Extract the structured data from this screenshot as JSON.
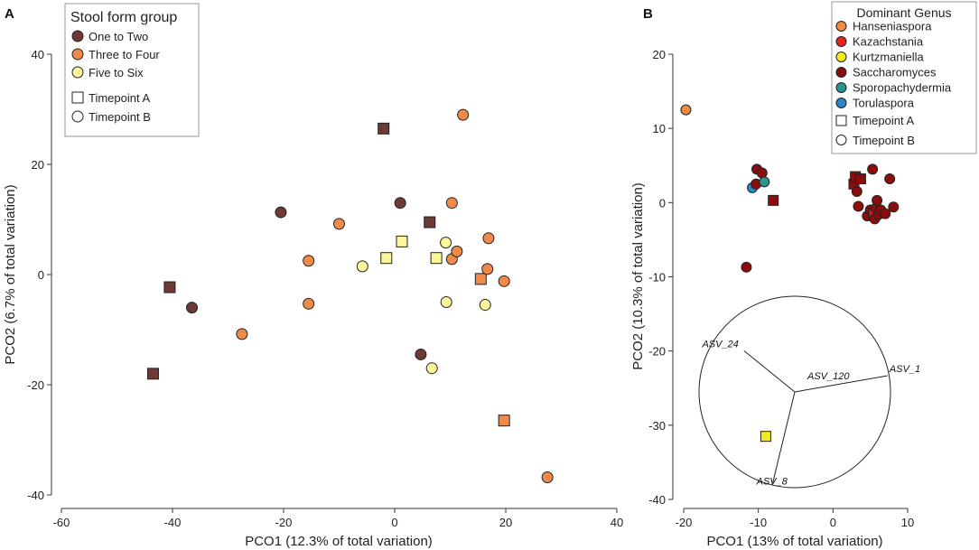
{
  "chart_data": [
    {
      "panel": "A",
      "type": "scatter",
      "xlabel": "PCO1 (12.3% of total variation)",
      "ylabel": "PCO2 (6.7% of total variation)",
      "xlim": [
        -60,
        40
      ],
      "ylim": [
        -40,
        40
      ],
      "xticks": [
        -60,
        -40,
        -20,
        0,
        20,
        40
      ],
      "yticks": [
        -40,
        -20,
        0,
        20,
        40
      ],
      "legend": {
        "title": "Stool form group",
        "position": "top-left",
        "groups": [
          {
            "key": "one",
            "label": "One to Two"
          },
          {
            "key": "three",
            "label": "Three to Four"
          },
          {
            "key": "five",
            "label": "Five to Six"
          }
        ],
        "shapes": [
          {
            "key": "A",
            "label": "Timepoint A"
          },
          {
            "key": "B",
            "label": "Timepoint B"
          }
        ]
      },
      "colors": {
        "one": "#6e3a36",
        "three": "#f08a4b",
        "five": "#fbf59c"
      },
      "points": [
        {
          "x": -43.5,
          "y": -18,
          "g": "one",
          "s": "A"
        },
        {
          "x": -40.5,
          "y": -2.3,
          "g": "one",
          "s": "A"
        },
        {
          "x": -36.5,
          "y": -6,
          "g": "one",
          "s": "B"
        },
        {
          "x": -27.5,
          "y": -10.8,
          "g": "three",
          "s": "B"
        },
        {
          "x": -20.5,
          "y": 11.3,
          "g": "one",
          "s": "B"
        },
        {
          "x": -15.5,
          "y": 2.5,
          "g": "three",
          "s": "B"
        },
        {
          "x": -15.5,
          "y": -5.3,
          "g": "three",
          "s": "B"
        },
        {
          "x": -10,
          "y": 9.2,
          "g": "three",
          "s": "B"
        },
        {
          "x": -5.8,
          "y": 1.5,
          "g": "five",
          "s": "B"
        },
        {
          "x": -2,
          "y": 26.5,
          "g": "one",
          "s": "A"
        },
        {
          "x": -1.5,
          "y": 3,
          "g": "five",
          "s": "A"
        },
        {
          "x": 1,
          "y": 13,
          "g": "one",
          "s": "B"
        },
        {
          "x": 1.3,
          "y": 6,
          "g": "five",
          "s": "A"
        },
        {
          "x": 4.7,
          "y": -14.5,
          "g": "one",
          "s": "B"
        },
        {
          "x": 6.3,
          "y": 9.5,
          "g": "one",
          "s": "A"
        },
        {
          "x": 6.7,
          "y": -17,
          "g": "five",
          "s": "B"
        },
        {
          "x": 7.5,
          "y": 3,
          "g": "five",
          "s": "A"
        },
        {
          "x": 9.2,
          "y": 5.8,
          "g": "five",
          "s": "B"
        },
        {
          "x": 9.3,
          "y": -5,
          "g": "five",
          "s": "B"
        },
        {
          "x": 10.3,
          "y": 13,
          "g": "three",
          "s": "B"
        },
        {
          "x": 10.3,
          "y": 2.8,
          "g": "three",
          "s": "B"
        },
        {
          "x": 11.2,
          "y": 4.2,
          "g": "three",
          "s": "B"
        },
        {
          "x": 12.3,
          "y": 29,
          "g": "three",
          "s": "B"
        },
        {
          "x": 15.5,
          "y": -0.8,
          "g": "three",
          "s": "A"
        },
        {
          "x": 16.3,
          "y": -5.5,
          "g": "five",
          "s": "B"
        },
        {
          "x": 16.7,
          "y": 1,
          "g": "three",
          "s": "B"
        },
        {
          "x": 16.9,
          "y": 6.6,
          "g": "three",
          "s": "B"
        },
        {
          "x": 19.7,
          "y": -1.2,
          "g": "three",
          "s": "B"
        },
        {
          "x": 19.7,
          "y": -26.5,
          "g": "three",
          "s": "A"
        },
        {
          "x": 27.5,
          "y": -36.8,
          "g": "three",
          "s": "B"
        }
      ]
    },
    {
      "panel": "B",
      "type": "scatter",
      "xlabel": "PCO1 (13% of total variation)",
      "ylabel": "PCO2 (10.3% of total variation)",
      "xlim": [
        -20,
        10
      ],
      "ylim": [
        -40,
        20
      ],
      "xticks": [
        -20,
        -10,
        0,
        10
      ],
      "yticks": [
        -40,
        -30,
        -20,
        -10,
        0,
        10,
        20
      ],
      "legend": {
        "title": "Dominant Genus",
        "position": "top-right",
        "groups": [
          {
            "key": "Hanseniaspora",
            "label": "Hanseniaspora"
          },
          {
            "key": "Kazachstania",
            "label": "Kazachstania"
          },
          {
            "key": "Kurtzmaniella",
            "label": "Kurtzmaniella"
          },
          {
            "key": "Saccharomyces",
            "label": "Saccharomyces"
          },
          {
            "key": "Sporopachydermia",
            "label": "Sporopachydermia"
          },
          {
            "key": "Torulaspora",
            "label": "Torulaspora"
          }
        ],
        "shapes": [
          {
            "key": "A",
            "label": "Timepoint A"
          },
          {
            "key": "B",
            "label": "Timepoint B"
          }
        ]
      },
      "colors": {
        "Hanseniaspora": "#f08a3c",
        "Kazachstania": "#e8201f",
        "Kurtzmaniella": "#f6ea1f",
        "Saccharomyces": "#8b0e0e",
        "Sporopachydermia": "#2a958f",
        "Torulaspora": "#2a86c5"
      },
      "points": [
        {
          "x": -19.7,
          "y": 12.5,
          "g": "Hanseniaspora",
          "s": "B"
        },
        {
          "x": -11.6,
          "y": -8.7,
          "g": "Saccharomyces",
          "s": "B"
        },
        {
          "x": -10.8,
          "y": 2,
          "g": "Torulaspora",
          "s": "B"
        },
        {
          "x": -10.3,
          "y": 2.5,
          "g": "Saccharomyces",
          "s": "B"
        },
        {
          "x": -10.2,
          "y": 4.5,
          "g": "Saccharomyces",
          "s": "B"
        },
        {
          "x": -9.5,
          "y": 4,
          "g": "Saccharomyces",
          "s": "B"
        },
        {
          "x": -9.2,
          "y": 2.8,
          "g": "Sporopachydermia",
          "s": "B"
        },
        {
          "x": -8,
          "y": 0.3,
          "g": "Saccharomyces",
          "s": "A"
        },
        {
          "x": 2.8,
          "y": 2.5,
          "g": "Saccharomyces",
          "s": "A"
        },
        {
          "x": 3,
          "y": 3.5,
          "g": "Saccharomyces",
          "s": "A"
        },
        {
          "x": 3.2,
          "y": 1.5,
          "g": "Saccharomyces",
          "s": "B"
        },
        {
          "x": 3.4,
          "y": -0.5,
          "g": "Saccharomyces",
          "s": "B"
        },
        {
          "x": 3.7,
          "y": 3.2,
          "g": "Saccharomyces",
          "s": "A"
        },
        {
          "x": 4.6,
          "y": -1.8,
          "g": "Saccharomyces",
          "s": "B"
        },
        {
          "x": 5,
          "y": -1,
          "g": "Saccharomyces",
          "s": "B"
        },
        {
          "x": 5.3,
          "y": 4.5,
          "g": "Saccharomyces",
          "s": "B"
        },
        {
          "x": 5.5,
          "y": -1.5,
          "g": "Kazachstania",
          "s": "A"
        },
        {
          "x": 5.6,
          "y": -2.2,
          "g": "Saccharomyces",
          "s": "B"
        },
        {
          "x": 5.7,
          "y": -0.8,
          "g": "Saccharomyces",
          "s": "B"
        },
        {
          "x": 5.9,
          "y": 0.3,
          "g": "Saccharomyces",
          "s": "B"
        },
        {
          "x": 6.1,
          "y": -1.6,
          "g": "Saccharomyces",
          "s": "B"
        },
        {
          "x": 6.4,
          "y": -1,
          "g": "Saccharomyces",
          "s": "B"
        },
        {
          "x": 7,
          "y": -1.5,
          "g": "Saccharomyces",
          "s": "B"
        },
        {
          "x": 7.6,
          "y": 3.2,
          "g": "Saccharomyces",
          "s": "B"
        },
        {
          "x": 8.1,
          "y": -0.6,
          "g": "Saccharomyces",
          "s": "B"
        },
        {
          "x": -9,
          "y": -31.5,
          "g": "Kurtzmaniella",
          "s": "A"
        }
      ],
      "vectors": [
        {
          "label": "ASV_1",
          "dx": 0.97,
          "dy": 0.17
        },
        {
          "label": "ASV_24",
          "dx": -0.53,
          "dy": 0.43
        },
        {
          "label": "ASV_120",
          "dx": 0,
          "dy": 0
        },
        {
          "label": "ASV_8",
          "dx": -0.23,
          "dy": -0.95
        }
      ]
    }
  ]
}
